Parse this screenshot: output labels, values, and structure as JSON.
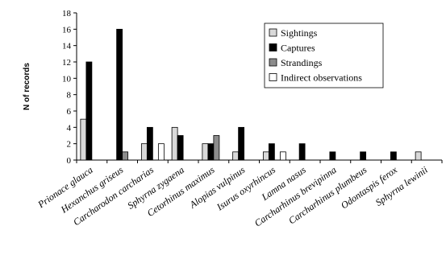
{
  "chart_data": {
    "type": "bar",
    "ylabel": "N of records",
    "xlabel": "",
    "title": "",
    "ylim": [
      0,
      18
    ],
    "yticks": [
      0,
      2,
      4,
      6,
      8,
      10,
      12,
      14,
      16,
      18
    ],
    "grid": false,
    "legend_position": "top-right",
    "categories": [
      "Prionace glauca",
      "Hexanchus griseus",
      "Carcharodon carcharias",
      "Sphyrna zygaena",
      "Cetorhinus maximus",
      "Alopias vulpinus",
      "Isurus oxyrhincus",
      "Lamna nasus",
      "Carcharhinus brevipinna",
      "Carcharhinus plumbeus",
      "Odontaspis ferox",
      "Sphyrna lewinii"
    ],
    "series": [
      {
        "name": "Sightings",
        "color": "#d9d9d9",
        "values": [
          5,
          0,
          2,
          4,
          2,
          1,
          1,
          0,
          0,
          0,
          0,
          1
        ]
      },
      {
        "name": "Captures",
        "color": "#000000",
        "values": [
          12,
          16,
          4,
          3,
          2,
          4,
          2,
          2,
          1,
          1,
          1,
          0
        ]
      },
      {
        "name": "Strandings",
        "color": "#8c8c8c",
        "values": [
          0,
          1,
          0,
          0,
          3,
          0,
          0,
          0,
          0,
          0,
          0,
          0
        ]
      },
      {
        "name": "Indirect observations",
        "color": "#ffffff",
        "values": [
          0,
          0,
          2,
          0,
          0,
          0,
          1,
          0,
          0,
          0,
          0,
          0
        ]
      }
    ]
  }
}
